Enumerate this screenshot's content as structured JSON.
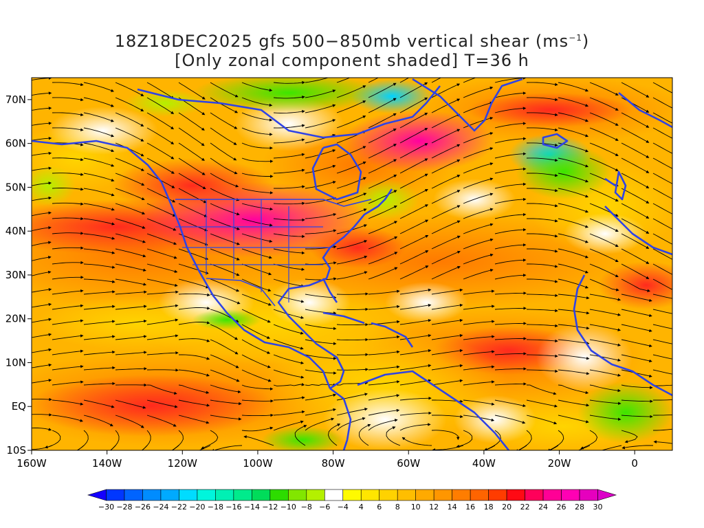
{
  "title": {
    "line1_prefix": "18Z18DEC2025 gfs 500−850mb vertical shear (ms",
    "line1_sup": "−1",
    "line1_suffix": ")",
    "line2": "[Only zonal component shaded] T=36 h"
  },
  "map": {
    "lon_range": [
      -160,
      10
    ],
    "lat_range": [
      -10,
      75
    ],
    "lat_ticks": [
      {
        "lat": 70,
        "label": "70N"
      },
      {
        "lat": 60,
        "label": "60N"
      },
      {
        "lat": 50,
        "label": "50N"
      },
      {
        "lat": 40,
        "label": "40N"
      },
      {
        "lat": 30,
        "label": "30N"
      },
      {
        "lat": 20,
        "label": "20N"
      },
      {
        "lat": 10,
        "label": "10N"
      },
      {
        "lat": 0,
        "label": "EQ"
      },
      {
        "lat": -10,
        "label": "10S"
      }
    ],
    "lon_ticks": [
      {
        "lon": -160,
        "label": "160W"
      },
      {
        "lon": -140,
        "label": "140W"
      },
      {
        "lon": -120,
        "label": "120W"
      },
      {
        "lon": -100,
        "label": "100W"
      },
      {
        "lon": -80,
        "label": "80W"
      },
      {
        "lon": -60,
        "label": "60W"
      },
      {
        "lon": -40,
        "label": "40W"
      },
      {
        "lon": -20,
        "label": "20W"
      },
      {
        "lon": 0,
        "label": "0"
      }
    ],
    "coast_color": "#2e43e6",
    "streamline_color": "#000000"
  },
  "colorbar": {
    "labels": [
      "-30",
      "-28",
      "-26",
      "-24",
      "-22",
      "-20",
      "-18",
      "-16",
      "-14",
      "-12",
      "-10",
      "-8",
      "-6",
      "-4",
      "4",
      "6",
      "8",
      "10",
      "12",
      "14",
      "16",
      "18",
      "20",
      "22",
      "24",
      "26",
      "28",
      "30"
    ],
    "colors": [
      "#1400ff",
      "#0037ff",
      "#0064ff",
      "#008cff",
      "#00aaff",
      "#00dcff",
      "#00f5dc",
      "#00f0b4",
      "#00eb8c",
      "#00dc5a",
      "#2ddc00",
      "#82e600",
      "#b4f000",
      "#ffffff",
      "#fffa00",
      "#ffe600",
      "#ffd200",
      "#ffbe00",
      "#ffaa00",
      "#ff9600",
      "#ff7d00",
      "#ff6400",
      "#ff3c00",
      "#ff0a14",
      "#ff005a",
      "#ff0096",
      "#ff00b4",
      "#e600be",
      "#dc00c8"
    ]
  }
}
